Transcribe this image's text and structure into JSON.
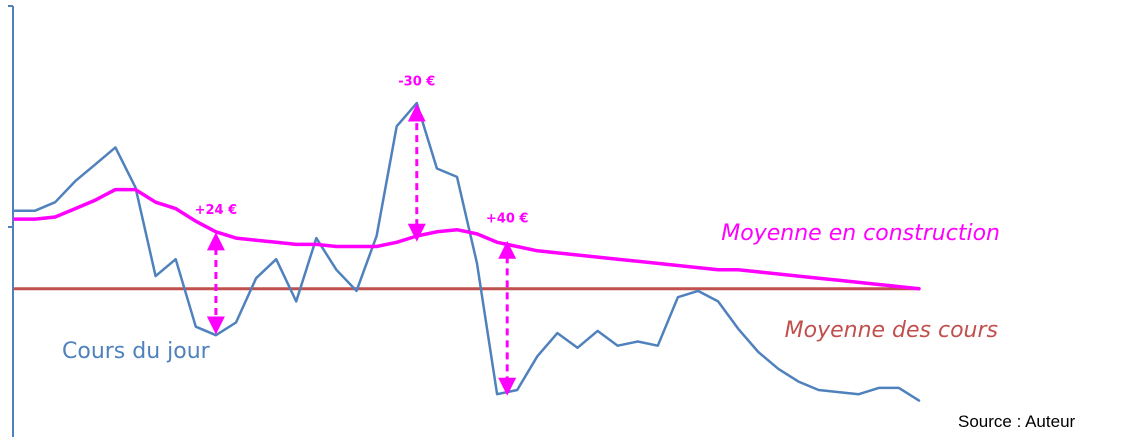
{
  "chart_data": {
    "type": "line",
    "x": [
      0,
      1,
      2,
      3,
      4,
      5,
      6,
      7,
      8,
      9,
      10,
      11,
      12,
      13,
      14,
      15,
      16,
      17,
      18,
      19,
      20,
      21,
      22,
      23,
      24,
      25,
      26,
      27,
      28,
      29,
      30,
      31,
      32,
      33,
      34,
      35,
      36,
      37,
      38,
      39,
      40,
      41,
      42,
      43,
      44,
      45
    ],
    "ylim": [
      0,
      100
    ],
    "grid": false,
    "series": [
      {
        "name": "Cours du jour",
        "color": "#4f81bd",
        "values": [
          51.5,
          51.5,
          53.5,
          58.5,
          62.5,
          66.5,
          57,
          36,
          40,
          24,
          22,
          25,
          35.5,
          40,
          30,
          45,
          37.5,
          32.5,
          45.5,
          71.5,
          77,
          61.5,
          59.5,
          39,
          8,
          9,
          17,
          22.5,
          19,
          23,
          19.5,
          20.5,
          19.5,
          31,
          32.5,
          30,
          23.5,
          18,
          14,
          11,
          9,
          8.5,
          8,
          9.5,
          9.5,
          6.5
        ]
      },
      {
        "name": "Moyenne en construction",
        "color": "#ff00ff",
        "values": [
          49.5,
          49.5,
          50,
          52,
          54,
          56.5,
          56.5,
          53.5,
          52,
          49,
          46.5,
          45,
          44.5,
          44,
          43.5,
          43.5,
          43,
          43,
          43,
          44,
          45.5,
          46.5,
          47,
          46,
          44,
          43,
          42,
          41.5,
          41,
          40.5,
          40,
          39.5,
          39,
          38.5,
          38,
          37.5,
          37.5,
          37,
          36.5,
          36,
          35.5,
          35,
          34.5,
          34,
          33.5,
          33
        ]
      },
      {
        "name": "Moyenne des cours",
        "color": "#c0504d",
        "values": [
          33,
          33,
          33,
          33,
          33,
          33,
          33,
          33,
          33,
          33,
          33,
          33,
          33,
          33,
          33,
          33,
          33,
          33,
          33,
          33,
          33,
          33,
          33,
          33,
          33,
          33,
          33,
          33,
          33,
          33,
          33,
          33,
          33,
          33,
          33,
          33,
          33,
          33,
          33,
          33,
          33,
          33,
          33,
          33,
          33,
          33
        ]
      }
    ],
    "annotations": [
      {
        "label": "+24 €",
        "x": 10,
        "from": 45.5,
        "to": 23
      },
      {
        "label": "-30 €",
        "x": 20,
        "from": 45,
        "to": 76
      },
      {
        "label": "+40 €",
        "x": 24.5,
        "from": 43.5,
        "to": 8.5
      }
    ]
  },
  "labels": {
    "cours_du_jour": "Cours du jour",
    "moyenne_construction": "Moyenne en construction",
    "moyenne_cours": "Moyenne des cours",
    "source": "Source : Auteur"
  },
  "colors": {
    "axis": "#4f81bd",
    "annotation": "#ff00ff"
  }
}
